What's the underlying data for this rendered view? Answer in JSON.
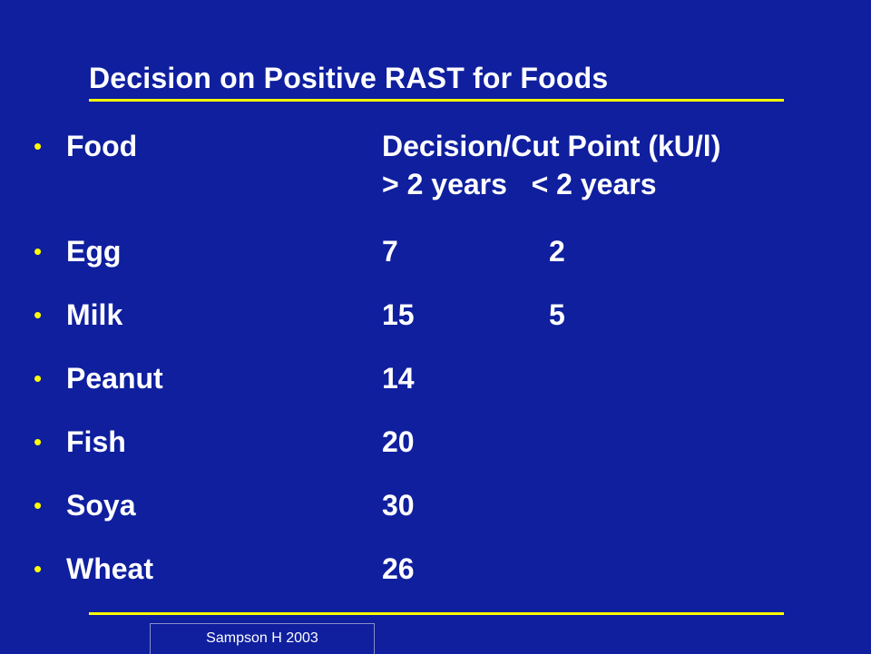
{
  "slide": {
    "title": "Decision on Positive RAST for Foods",
    "header": {
      "food_label": "Food",
      "decision_label": "Decision/Cut Point (kU/l)",
      "age_label": "> 2 years   < 2 years"
    },
    "rows": [
      {
        "food": "Egg",
        "over2": "7",
        "under2": "2"
      },
      {
        "food": "Milk",
        "over2": "15",
        "under2": "5"
      },
      {
        "food": "Peanut",
        "over2": "14",
        "under2": ""
      },
      {
        "food": "Fish",
        "over2": "20",
        "under2": ""
      },
      {
        "food": "Soya",
        "over2": "30",
        "under2": ""
      },
      {
        "food": "Wheat",
        "over2": "26",
        "under2": ""
      }
    ],
    "citation": "Sampson H 2003",
    "colors": {
      "background": "#0f1f9e",
      "accent": "#ffff00",
      "text": "#ffffff"
    }
  }
}
